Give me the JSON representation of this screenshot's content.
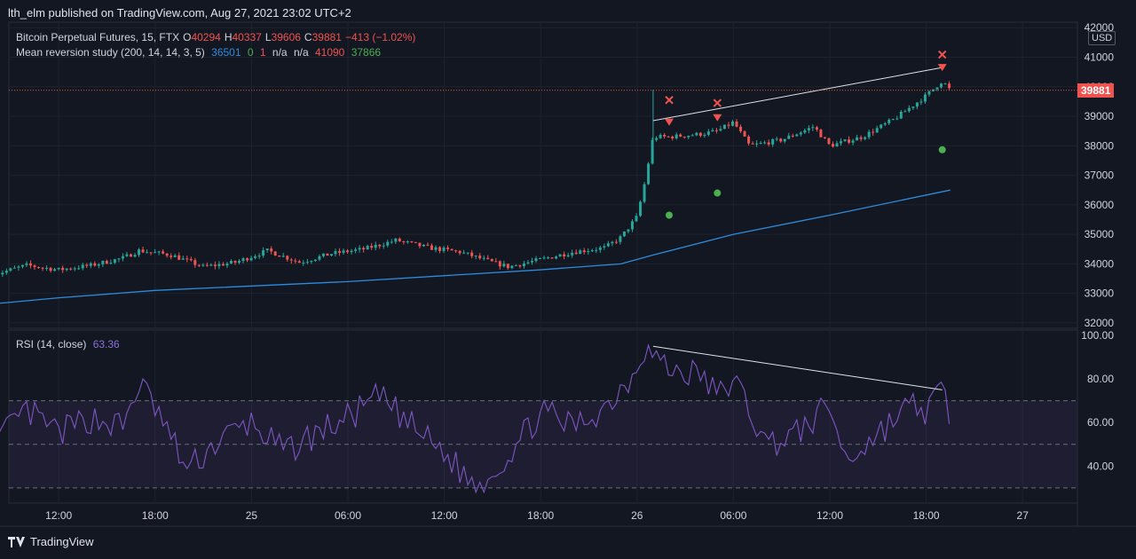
{
  "header": {
    "caption": "lth_elm published on TradingView.com, Aug 27, 2021 23:02 UTC+2"
  },
  "legend": {
    "symbol": "Bitcoin Perpetual Futures, 15, FTX",
    "o_label": "O",
    "o_value": "40294",
    "h_label": "H",
    "h_value": "40337",
    "l_label": "L",
    "l_value": "39606",
    "c_label": "C",
    "c_value": "39881",
    "change": "−413 (−1.02%)",
    "study_name": "Mean reversion study (200, 14, 14, 3, 5)",
    "study_v1": "36501",
    "study_v2": "0",
    "study_v3": "1",
    "study_v4": "n/a",
    "study_v5": "n/a",
    "study_v6": "41090",
    "study_v7": "37866",
    "rsi_name": "RSI (14, close)",
    "rsi_value": "63.36"
  },
  "axis": {
    "currency": "USD",
    "last_price": "39881",
    "price_ticks": [
      "42000",
      "41000",
      "40000",
      "39000",
      "38000",
      "37000",
      "36000",
      "35000",
      "34000",
      "33000",
      "32000"
    ],
    "rsi_ticks": [
      "100.00",
      "80.00",
      "60.00",
      "40.00"
    ],
    "time_ticks": [
      "12:00",
      "18:00",
      "25",
      "06:00",
      "12:00",
      "18:00",
      "26",
      "06:00",
      "12:00",
      "18:00",
      "27"
    ]
  },
  "footer": {
    "brand": "TradingView"
  },
  "colors": {
    "background": "#131722",
    "up": "#26a69a",
    "down": "#ef5350",
    "ma": "#2e8bdc",
    "rsi": "#7e57c2",
    "marker_green": "#4caf50",
    "marker_red": "#ef5350"
  },
  "chart_data": [
    {
      "type": "candlestick",
      "title": "Bitcoin Perpetual Futures, 15, FTX",
      "ylabel": "USD",
      "ylim": [
        32000,
        42000
      ],
      "x_ticks": [
        "12:00",
        "18:00",
        "25",
        "06:00",
        "12:00",
        "18:00",
        "26",
        "06:00",
        "12:00",
        "18:00",
        "27"
      ],
      "close_path": [
        {
          "t": "24 08:00",
          "v": 33650
        },
        {
          "t": "24 10:00",
          "v": 33950
        },
        {
          "t": "24 12:00",
          "v": 33800
        },
        {
          "t": "24 14:00",
          "v": 33950
        },
        {
          "t": "24 16:00",
          "v": 34200
        },
        {
          "t": "24 17:00",
          "v": 34450
        },
        {
          "t": "24 19:00",
          "v": 34300
        },
        {
          "t": "24 21:00",
          "v": 33900
        },
        {
          "t": "24 23:00",
          "v": 34050
        },
        {
          "t": "25 01:00",
          "v": 34450
        },
        {
          "t": "25 03:00",
          "v": 34050
        },
        {
          "t": "25 05:00",
          "v": 34350
        },
        {
          "t": "25 07:00",
          "v": 34500
        },
        {
          "t": "25 09:00",
          "v": 34800
        },
        {
          "t": "25 11:00",
          "v": 34550
        },
        {
          "t": "25 13:00",
          "v": 34400
        },
        {
          "t": "25 15:00",
          "v": 34050
        },
        {
          "t": "25 16:00",
          "v": 33900
        },
        {
          "t": "25 18:00",
          "v": 34150
        },
        {
          "t": "25 20:00",
          "v": 34400
        },
        {
          "t": "25 22:00",
          "v": 34550
        },
        {
          "t": "25 23:00",
          "v": 34900
        },
        {
          "t": "26 00:00",
          "v": 35600
        },
        {
          "t": "26 00:30",
          "v": 36800
        },
        {
          "t": "26 01:00",
          "v": 38300
        },
        {
          "t": "26 02:00",
          "v": 38300
        },
        {
          "t": "26 04:00",
          "v": 38400
        },
        {
          "t": "26 05:00",
          "v": 38500
        },
        {
          "t": "26 06:00",
          "v": 38800
        },
        {
          "t": "26 07:00",
          "v": 38000
        },
        {
          "t": "26 09:00",
          "v": 38200
        },
        {
          "t": "26 11:00",
          "v": 38650
        },
        {
          "t": "26 12:00",
          "v": 38000
        },
        {
          "t": "26 14:00",
          "v": 38300
        },
        {
          "t": "26 16:00",
          "v": 38900
        },
        {
          "t": "26 17:00",
          "v": 39300
        },
        {
          "t": "26 18:00",
          "v": 39700
        },
        {
          "t": "26 19:00",
          "v": 40200
        },
        {
          "t": "26 19:30",
          "v": 39881
        }
      ],
      "series": [
        {
          "name": "Mean reversion study",
          "values": [
            {
              "t": "24 08:00",
              "v": 32650
            },
            {
              "t": "24 12:00",
              "v": 32850
            },
            {
              "t": "24 18:00",
              "v": 33100
            },
            {
              "t": "25 06:00",
              "v": 33400
            },
            {
              "t": "25 18:00",
              "v": 33800
            },
            {
              "t": "25 23:00",
              "v": 34000
            },
            {
              "t": "26 01:00",
              "v": 34300
            },
            {
              "t": "26 06:00",
              "v": 35000
            },
            {
              "t": "26 12:00",
              "v": 35650
            },
            {
              "t": "26 19:30",
              "v": 36501
            }
          ]
        }
      ],
      "markers": [
        {
          "kind": "x",
          "color": "red",
          "t": "26 02:00",
          "v": 39550
        },
        {
          "kind": "x",
          "color": "red",
          "t": "26 05:00",
          "v": 39450
        },
        {
          "kind": "x",
          "color": "red",
          "t": "26 19:00",
          "v": 41090
        },
        {
          "kind": "triangle-down",
          "color": "red",
          "t": "26 02:00",
          "v": 38800
        },
        {
          "kind": "triangle-down",
          "color": "red",
          "t": "26 05:00",
          "v": 38950
        },
        {
          "kind": "triangle-down",
          "color": "red",
          "t": "26 19:00",
          "v": 40650
        },
        {
          "kind": "dot",
          "color": "green",
          "t": "26 02:00",
          "v": 35650
        },
        {
          "kind": "dot",
          "color": "green",
          "t": "26 05:00",
          "v": 36400
        },
        {
          "kind": "dot",
          "color": "green",
          "t": "26 19:00",
          "v": 37866
        }
      ],
      "trendlines": [
        {
          "from": {
            "t": "26 01:00",
            "v": 38850
          },
          "to": {
            "t": "26 19:00",
            "v": 40650
          }
        }
      ],
      "last_price": 39881
    },
    {
      "type": "line",
      "title": "RSI (14, close)",
      "ylim": [
        25,
        100
      ],
      "bands": {
        "upper": 70,
        "middle": 50,
        "lower": 30
      },
      "series": [
        {
          "name": "RSI",
          "values": [
            {
              "t": "24 08:00",
              "v": 50
            },
            {
              "t": "24 10:00",
              "v": 65
            },
            {
              "t": "24 12:00",
              "v": 55
            },
            {
              "t": "24 14:00",
              "v": 62
            },
            {
              "t": "24 16:00",
              "v": 58
            },
            {
              "t": "24 17:00",
              "v": 78
            },
            {
              "t": "24 18:00",
              "v": 67
            },
            {
              "t": "24 20:00",
              "v": 38
            },
            {
              "t": "24 22:00",
              "v": 52
            },
            {
              "t": "25 00:00",
              "v": 60
            },
            {
              "t": "25 02:00",
              "v": 46
            },
            {
              "t": "25 04:00",
              "v": 55
            },
            {
              "t": "25 06:00",
              "v": 62
            },
            {
              "t": "25 08:00",
              "v": 72
            },
            {
              "t": "25 10:00",
              "v": 58
            },
            {
              "t": "25 12:00",
              "v": 46
            },
            {
              "t": "25 14:00",
              "v": 30
            },
            {
              "t": "25 16:00",
              "v": 45
            },
            {
              "t": "25 18:00",
              "v": 65
            },
            {
              "t": "25 20:00",
              "v": 58
            },
            {
              "t": "25 22:00",
              "v": 67
            },
            {
              "t": "25 23:30",
              "v": 80
            },
            {
              "t": "26 00:30",
              "v": 95
            },
            {
              "t": "26 02:00",
              "v": 84
            },
            {
              "t": "26 04:00",
              "v": 82
            },
            {
              "t": "26 05:00",
              "v": 72
            },
            {
              "t": "26 06:00",
              "v": 80
            },
            {
              "t": "26 07:00",
              "v": 66
            },
            {
              "t": "26 08:00",
              "v": 50
            },
            {
              "t": "26 10:00",
              "v": 55
            },
            {
              "t": "26 12:00",
              "v": 68
            },
            {
              "t": "26 13:00",
              "v": 42
            },
            {
              "t": "26 15:00",
              "v": 55
            },
            {
              "t": "26 17:00",
              "v": 68
            },
            {
              "t": "26 18:00",
              "v": 65
            },
            {
              "t": "26 19:00",
              "v": 75
            },
            {
              "t": "26 19:30",
              "v": 63.36
            }
          ]
        }
      ],
      "trendlines": [
        {
          "from": {
            "t": "26 01:00",
            "v": 95
          },
          "to": {
            "t": "26 19:00",
            "v": 75
          }
        }
      ]
    }
  ]
}
